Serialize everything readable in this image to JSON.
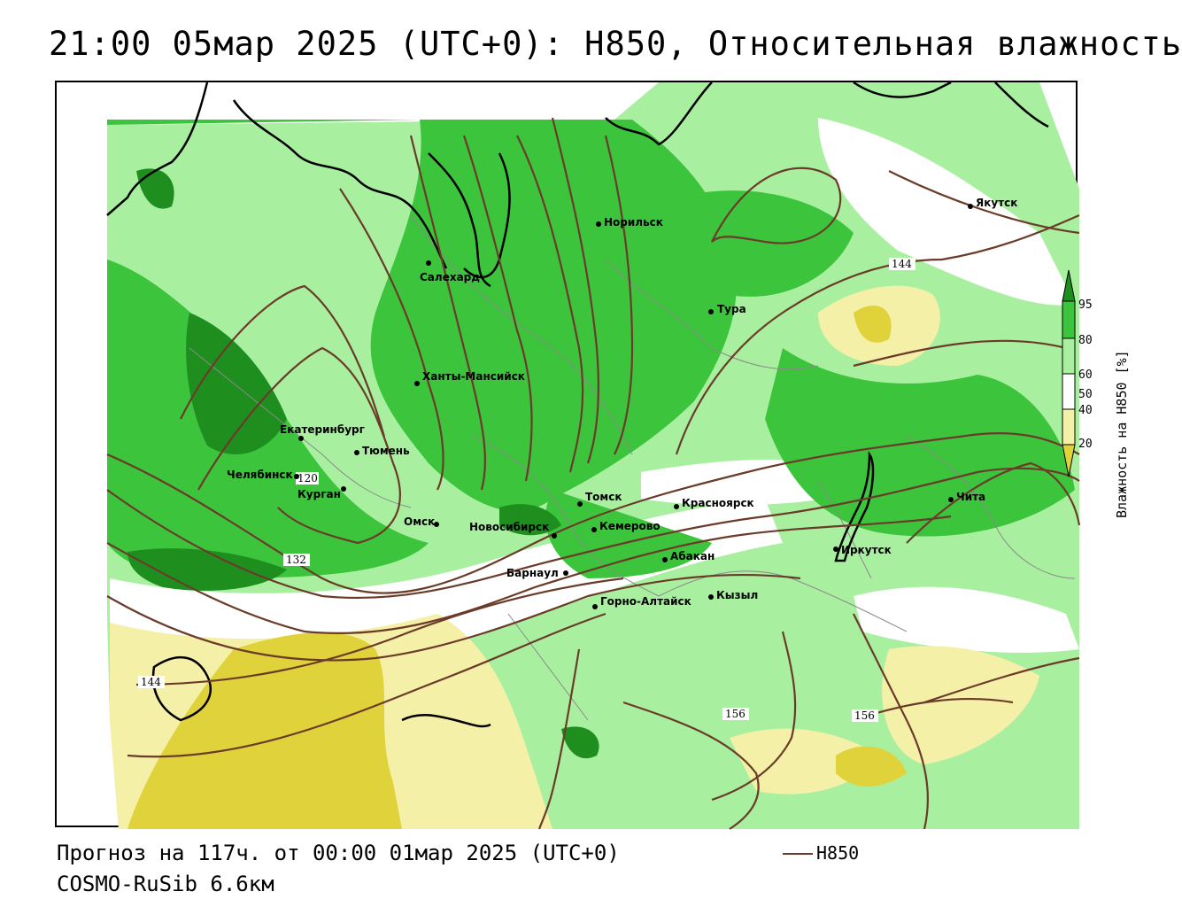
{
  "title": "21:00 05мар 2025 (UTC+0): H850, Относительная влажность",
  "footer": {
    "forecast": "Прогноз на 117ч. от 00:00 01мар 2025 (UTC+0)",
    "model": "COSMO-RuSib 6.6км",
    "line_legend": "H850"
  },
  "colors": {
    "dark_green": "#1e8f1e",
    "green": "#3cc43c",
    "light_green": "#a8f0a0",
    "white": "#ffffff",
    "light_yellow": "#f5f0a8",
    "yellow": "#e0d23a",
    "contour": "#6b3b2a"
  },
  "colorbar": {
    "label": "Влажность на H850 [%]",
    "ticks": [
      "95",
      "80",
      "60",
      "50",
      "40",
      "20"
    ]
  },
  "cities": [
    {
      "name": "Якутск"
    },
    {
      "name": "Норильск"
    },
    {
      "name": "Салехард"
    },
    {
      "name": "Тура"
    },
    {
      "name": "Ханты-Мансийск"
    },
    {
      "name": "Екатеринбург"
    },
    {
      "name": "Тюмень"
    },
    {
      "name": "Челябинск"
    },
    {
      "name": "Курган"
    },
    {
      "name": "Омск"
    },
    {
      "name": "Новосибирск"
    },
    {
      "name": "Томск"
    },
    {
      "name": "Кемерово"
    },
    {
      "name": "Красноярск"
    },
    {
      "name": "Абакан"
    },
    {
      "name": "Барнаул"
    },
    {
      "name": "Горно-Алтайск"
    },
    {
      "name": "Кызыл"
    },
    {
      "name": "Иркутск"
    },
    {
      "name": "Чита"
    }
  ],
  "contour_labels": [
    "144",
    "120",
    "132",
    "144",
    "156",
    "156"
  ]
}
